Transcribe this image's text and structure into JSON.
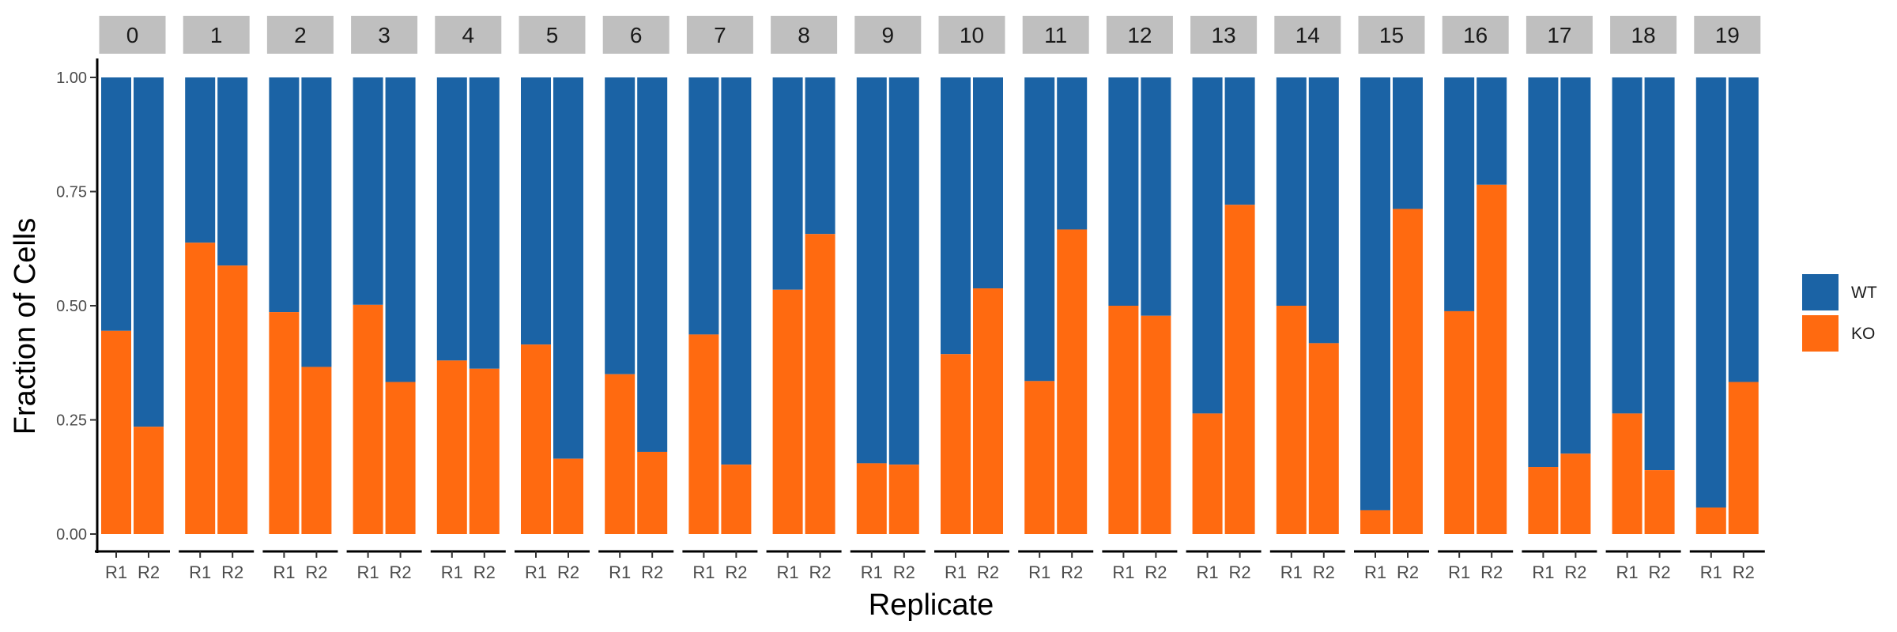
{
  "chart_data": {
    "type": "bar",
    "stacked": true,
    "facet_by": "cluster",
    "xlabel": "Replicate",
    "ylabel": "Fraction of Cells",
    "ylim": [
      0,
      1
    ],
    "yticks": [
      "0.00",
      "0.25",
      "0.50",
      "0.75",
      "1.00"
    ],
    "categories": [
      "R1",
      "R2"
    ],
    "legend_position": "right",
    "grid": false,
    "series": [
      {
        "name": "WT",
        "color": "#1b63a5"
      },
      {
        "name": "KO",
        "color": "#ff6a10"
      }
    ],
    "facets": [
      {
        "label": "0",
        "ko": [
          0.445,
          0.235
        ]
      },
      {
        "label": "1",
        "ko": [
          0.638,
          0.588
        ]
      },
      {
        "label": "2",
        "ko": [
          0.486,
          0.366
        ]
      },
      {
        "label": "3",
        "ko": [
          0.502,
          0.333
        ]
      },
      {
        "label": "4",
        "ko": [
          0.38,
          0.362
        ]
      },
      {
        "label": "5",
        "ko": [
          0.415,
          0.165
        ]
      },
      {
        "label": "6",
        "ko": [
          0.35,
          0.18
        ]
      },
      {
        "label": "7",
        "ko": [
          0.437,
          0.152
        ]
      },
      {
        "label": "8",
        "ko": [
          0.535,
          0.657
        ]
      },
      {
        "label": "9",
        "ko": [
          0.155,
          0.152
        ]
      },
      {
        "label": "10",
        "ko": [
          0.394,
          0.538
        ]
      },
      {
        "label": "11",
        "ko": [
          0.335,
          0.667
        ]
      },
      {
        "label": "12",
        "ko": [
          0.5,
          0.478
        ]
      },
      {
        "label": "13",
        "ko": [
          0.264,
          0.721
        ]
      },
      {
        "label": "14",
        "ko": [
          0.5,
          0.418
        ]
      },
      {
        "label": "15",
        "ko": [
          0.052,
          0.712
        ]
      },
      {
        "label": "16",
        "ko": [
          0.488,
          0.765
        ]
      },
      {
        "label": "17",
        "ko": [
          0.147,
          0.176
        ]
      },
      {
        "label": "18",
        "ko": [
          0.264,
          0.14
        ]
      },
      {
        "label": "19",
        "ko": [
          0.058,
          0.333
        ]
      }
    ]
  }
}
